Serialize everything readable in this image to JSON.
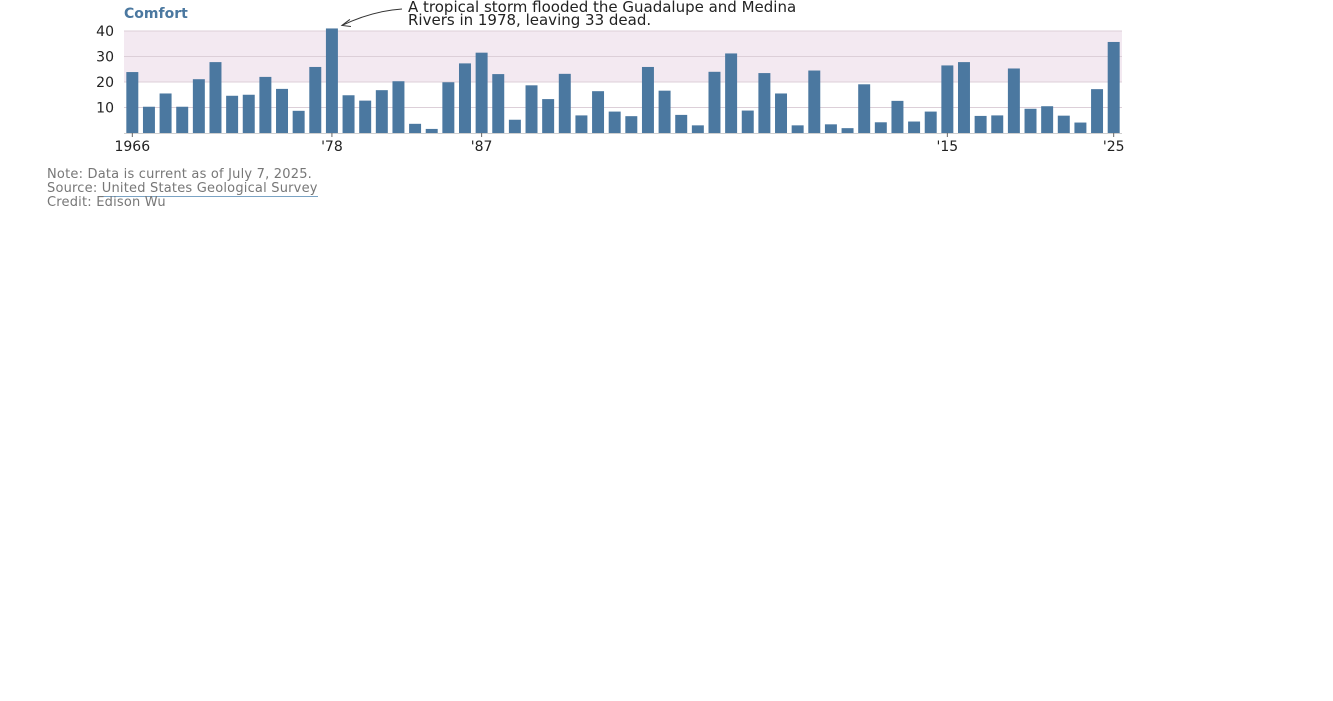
{
  "chart_data": {
    "type": "bar",
    "title": "Comfort",
    "annotation": {
      "lines": [
        "A tropical storm flooded the Guadalupe and Medina",
        "Rivers in 1978, leaving 33 dead."
      ],
      "points_to": 1978
    },
    "x": [
      1966,
      1967,
      1968,
      1969,
      1970,
      1971,
      1972,
      1973,
      1974,
      1975,
      1976,
      1977,
      1978,
      1979,
      1980,
      1981,
      1982,
      1983,
      1984,
      1985,
      1986,
      1987,
      1988,
      1989,
      1990,
      1991,
      1992,
      1993,
      1994,
      1995,
      1996,
      1997,
      1998,
      1999,
      2000,
      2001,
      2002,
      2003,
      2004,
      2005,
      2006,
      2007,
      2008,
      2009,
      2010,
      2011,
      2012,
      2013,
      2014,
      2015,
      2016,
      2017,
      2018,
      2019,
      2020,
      2021,
      2022,
      2023,
      2024,
      2025
    ],
    "values": [
      23.9,
      10.3,
      15.5,
      10.3,
      21.1,
      27.8,
      14.6,
      15.0,
      22.0,
      17.3,
      8.7,
      25.9,
      41.0,
      14.8,
      12.7,
      16.8,
      20.3,
      3.6,
      1.6,
      19.9,
      27.3,
      31.5,
      23.1,
      5.2,
      18.7,
      13.3,
      23.2,
      6.9,
      16.4,
      8.4,
      6.6,
      25.9,
      16.6,
      7.1,
      3.0,
      24.0,
      31.2,
      8.8,
      23.5,
      15.5,
      3.0,
      24.5,
      3.4,
      1.9,
      19.1,
      4.2,
      12.6,
      4.5,
      8.4,
      26.5,
      27.8,
      6.7,
      6.9,
      25.3,
      9.5,
      10.5,
      6.8,
      4.1,
      17.2,
      35.7
    ],
    "tick_labels": [
      {
        "year": 1966,
        "label": "1966"
      },
      {
        "year": 1978,
        "label": "'78"
      },
      {
        "year": 1987,
        "label": "'87"
      },
      {
        "year": 2015,
        "label": "'15"
      },
      {
        "year": 2025,
        "label": "'25"
      }
    ],
    "yticks": [
      10,
      20,
      30,
      40
    ],
    "ylim": [
      0,
      40
    ],
    "band": {
      "from": 20,
      "to": 40,
      "color": "#f3e9f1"
    },
    "bar_color": "#4b78a0",
    "grid": true
  },
  "footer": {
    "note": "Note: Data is current as of July 7, 2025.",
    "source_prefix": "Source: ",
    "source_link": "United States Geological Survey",
    "credit": "Credit: Edison Wu"
  }
}
